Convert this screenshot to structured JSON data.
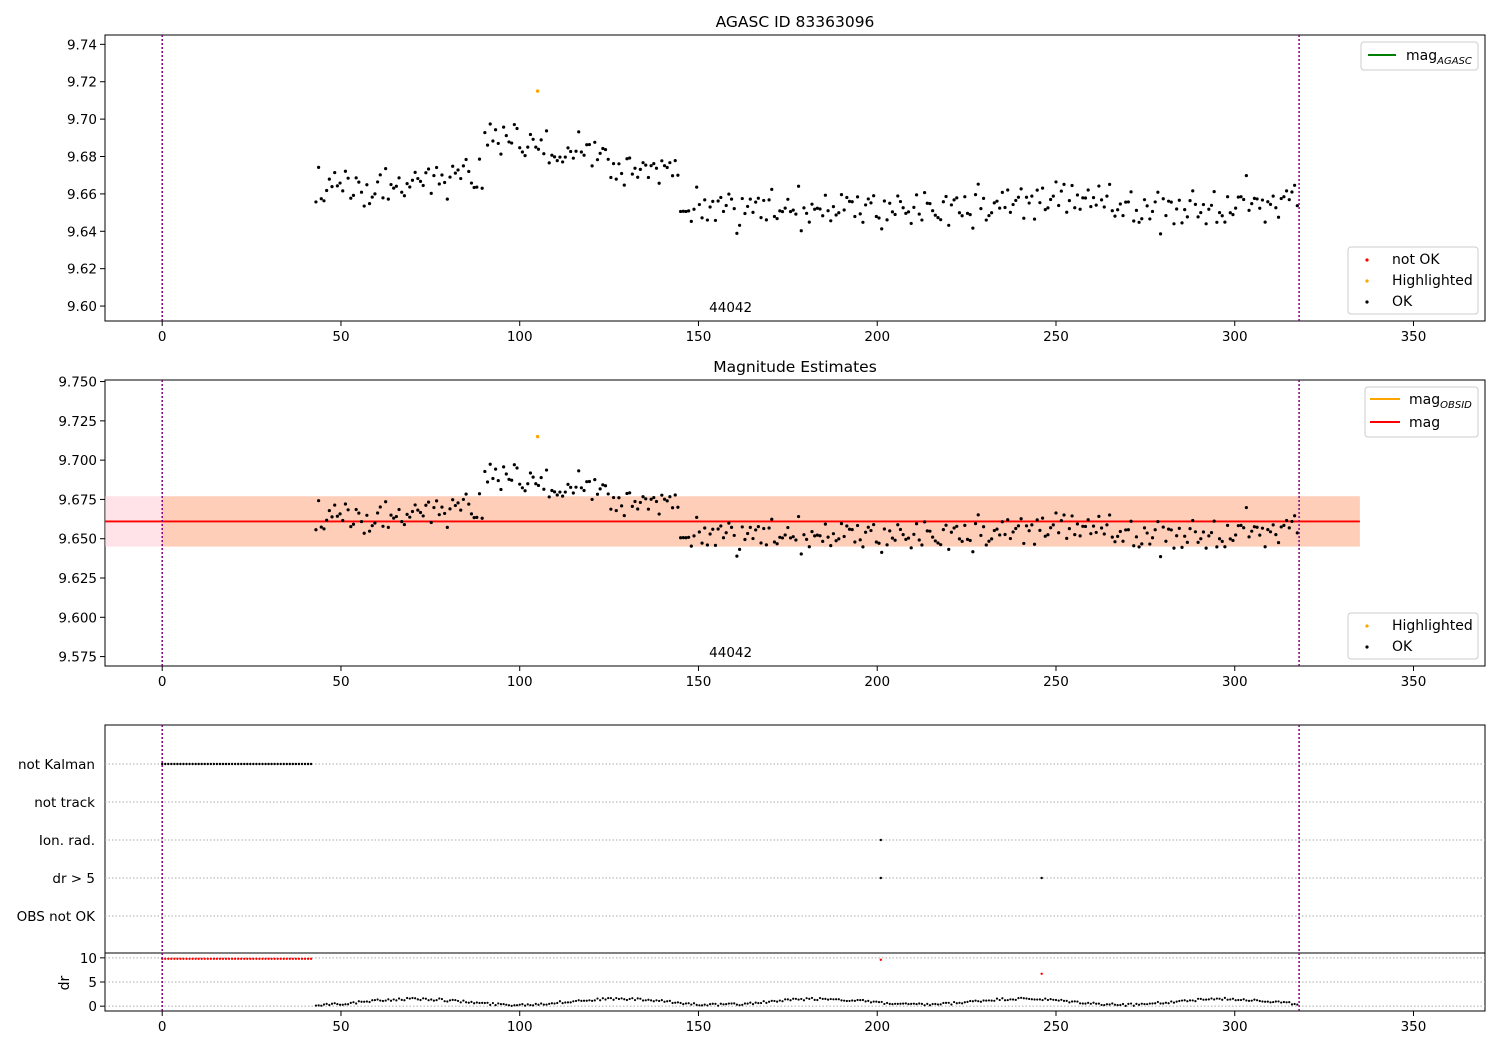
{
  "chart_data": [
    {
      "type": "scatter",
      "title": "AGASC ID 83363096",
      "xlim": [
        -16,
        370
      ],
      "ylim": [
        9.592,
        9.745
      ],
      "x_ticks": [
        "0",
        "50",
        "100",
        "150",
        "200",
        "250",
        "300",
        "350"
      ],
      "x_tick_values": [
        0,
        50,
        100,
        150,
        200,
        250,
        300,
        350
      ],
      "y_ticks": [
        "9.60",
        "9.62",
        "9.64",
        "9.66",
        "9.68",
        "9.70",
        "9.72",
        "9.74"
      ],
      "y_tick_values": [
        9.6,
        9.62,
        9.64,
        9.66,
        9.68,
        9.7,
        9.72,
        9.74
      ],
      "obsid_label": "44042",
      "obsid_label_x": 159,
      "vlines": [
        0,
        318
      ],
      "line_legend": [
        {
          "name": "mag",
          "sub": "AGASC",
          "color": "#008000"
        }
      ],
      "marker_legend": [
        {
          "name": "not OK",
          "color": "#ff0000"
        },
        {
          "name": "Highlighted",
          "color": "#ffa500"
        },
        {
          "name": "OK",
          "color": "#000000"
        }
      ],
      "highlighted_points": [
        {
          "x": 105,
          "y": 9.715
        }
      ]
    },
    {
      "type": "scatter",
      "title": "Magnitude Estimates",
      "xlim": [
        -16,
        370
      ],
      "ylim": [
        9.569,
        9.751
      ],
      "x_ticks": [
        "0",
        "50",
        "100",
        "150",
        "200",
        "250",
        "300",
        "350"
      ],
      "x_tick_values": [
        0,
        50,
        100,
        150,
        200,
        250,
        300,
        350
      ],
      "y_ticks": [
        "9.575",
        "9.600",
        "9.625",
        "9.650",
        "9.675",
        "9.700",
        "9.725",
        "9.750"
      ],
      "y_tick_values": [
        9.575,
        9.6,
        9.625,
        9.65,
        9.675,
        9.7,
        9.725,
        9.75
      ],
      "obsid_label": "44042",
      "obsid_label_x": 159,
      "vlines": [
        0,
        318
      ],
      "mag_value": 9.661,
      "mag_band": [
        9.645,
        9.677
      ],
      "band_x": [
        -16,
        335
      ],
      "line_legend": [
        {
          "name": "mag",
          "sub": "OBSID",
          "color": "#ffa500"
        },
        {
          "name": "mag",
          "sub": "",
          "color": "#ff0000"
        }
      ],
      "marker_legend": [
        {
          "name": "Highlighted",
          "color": "#ffa500"
        },
        {
          "name": "OK",
          "color": "#000000"
        }
      ],
      "highlighted_points": [
        {
          "x": 105,
          "y": 9.715
        }
      ]
    },
    {
      "type": "scatter",
      "title": "",
      "xlim": [
        -16,
        370
      ],
      "flag_rows": [
        "not Kalman",
        "not track",
        "Ion. rad.",
        "dr > 5",
        "OBS not OK"
      ],
      "flag_points": [
        {
          "row": "not Kalman",
          "x_range": [
            0,
            42
          ]
        },
        {
          "row": "Ion. rad.",
          "x": [
            201
          ]
        },
        {
          "row": "dr > 5",
          "x": [
            201,
            246
          ]
        }
      ],
      "vlines": [
        0,
        318
      ]
    },
    {
      "type": "scatter",
      "title": "",
      "ylabel": "dr",
      "xlim": [
        -16,
        370
      ],
      "ylim": [
        -1,
        11
      ],
      "y_ticks": [
        "0",
        "5",
        "10"
      ],
      "y_tick_values": [
        0,
        5,
        10
      ],
      "x_ticks": [
        "0",
        "50",
        "100",
        "150",
        "200",
        "250",
        "300",
        "350"
      ],
      "x_tick_values": [
        0,
        50,
        100,
        150,
        200,
        250,
        300,
        350
      ],
      "vlines": [
        0,
        318
      ],
      "red_points": [
        {
          "x_range": [
            0,
            42
          ],
          "y": 9.8
        },
        {
          "x": 201,
          "y": 9.6
        },
        {
          "x": 246,
          "y": 6.7
        }
      ]
    }
  ]
}
